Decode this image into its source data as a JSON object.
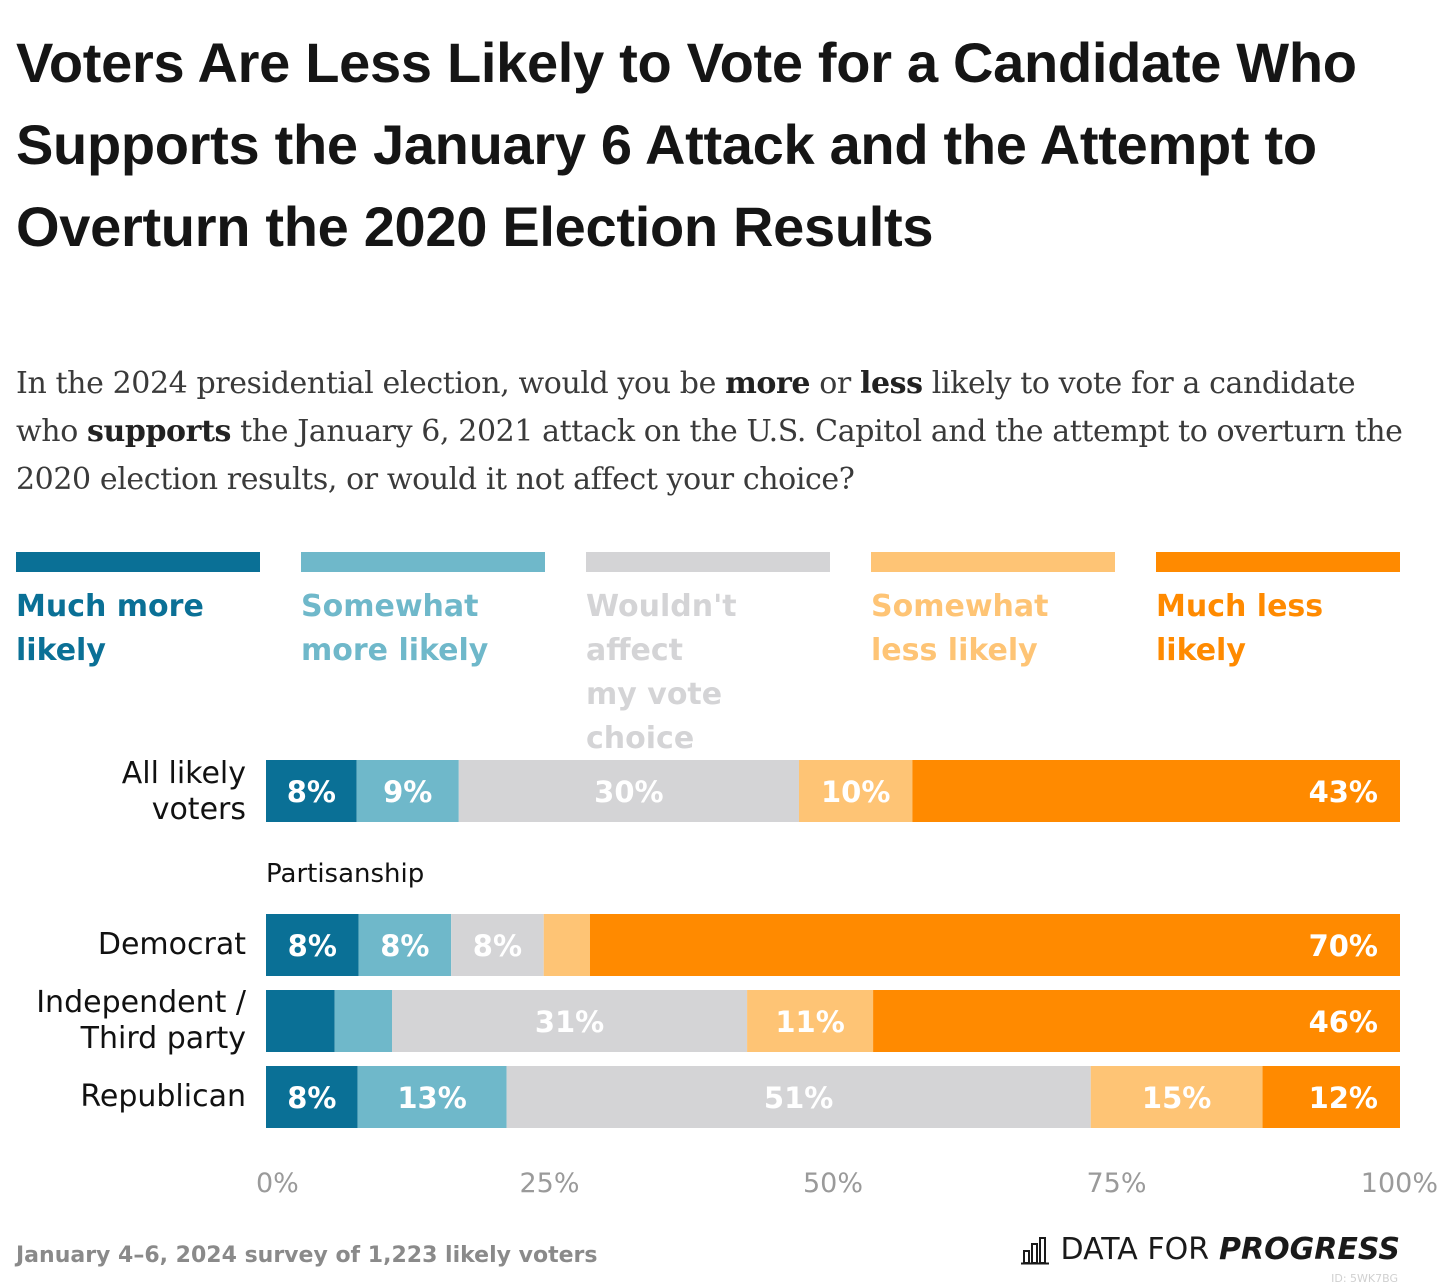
{
  "title": "Voters Are Less Likely to Vote for a Candidate Who Supports the January 6 Attack and the Attempt to Overturn the 2020 Election Results",
  "subtitle": {
    "p1": "In the 2024 presidential election, would you be ",
    "b1": "more",
    "p2": " or ",
    "b2": "less",
    "p3": " likely to vote for a candidate who ",
    "b3": "supports",
    "p4": " the January 6, 2021 attack on the U.S. Capitol and the attempt to overturn the 2020 election results, or would it not affect your choice?"
  },
  "legend": [
    {
      "label": "Much more likely",
      "color": "#0a7096"
    },
    {
      "label": "Somewhat more likely",
      "color": "#6fb8ca"
    },
    {
      "label": "Wouldn't affect my vote choice",
      "color": "#d4d4d6"
    },
    {
      "label": "Somewhat less likely",
      "color": "#fec475"
    },
    {
      "label": "Much less likely",
      "color": "#ff8a00"
    }
  ],
  "section_label": "Partisanship",
  "footer": {
    "note": "January 4–6, 2024 survey of 1,223 likely voters",
    "brand_prefix": "DATA FOR",
    "brand_strong": "PROGRESS",
    "id": "ID: 5WK7BG"
  },
  "chart_data": {
    "type": "bar",
    "orientation": "horizontal",
    "stacked": true,
    "xlim": [
      0,
      100
    ],
    "x_ticks": [
      "0%",
      "25%",
      "50%",
      "75%",
      "100%"
    ],
    "categories": [
      "All likely voters",
      "Democrat",
      "Independent / Third party",
      "Republican"
    ],
    "series": [
      {
        "name": "Much more likely",
        "values": [
          8,
          8,
          6,
          8
        ],
        "labels": [
          "8%",
          "8%",
          "",
          "8%"
        ]
      },
      {
        "name": "Somewhat more likely",
        "values": [
          9,
          8,
          5,
          13
        ],
        "labels": [
          "9%",
          "8%",
          "",
          "13%"
        ]
      },
      {
        "name": "Wouldn't affect my vote choice",
        "values": [
          30,
          8,
          31,
          51
        ],
        "labels": [
          "30%",
          "8%",
          "31%",
          "51%"
        ]
      },
      {
        "name": "Somewhat less likely",
        "values": [
          10,
          4,
          11,
          15
        ],
        "labels": [
          "10%",
          "",
          "11%",
          "15%"
        ]
      },
      {
        "name": "Much less likely",
        "values": [
          43,
          70,
          46,
          12
        ],
        "labels": [
          "43%",
          "70%",
          "46%",
          "12%"
        ]
      }
    ]
  }
}
